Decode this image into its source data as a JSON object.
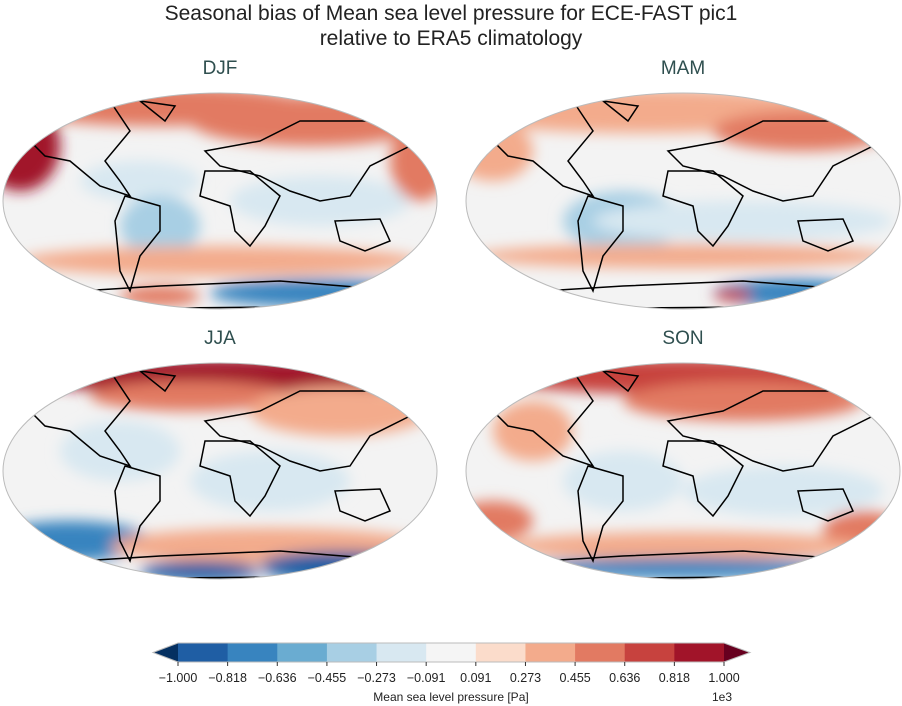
{
  "title": {
    "line1": "Seasonal bias of Mean sea level pressure for ECE-FAST pic1",
    "line2": "relative to ERA5 climatology"
  },
  "panels": [
    {
      "label": "DJF"
    },
    {
      "label": "MAM"
    },
    {
      "label": "JJA"
    },
    {
      "label": "SON"
    }
  ],
  "colorbar": {
    "label": "Mean sea level pressure [Pa]",
    "exponent": "1e3",
    "ticks": [
      "−1.000",
      "−0.818",
      "−0.636",
      "−0.455",
      "−0.273",
      "−0.091",
      "0.091",
      "0.273",
      "0.455",
      "0.636",
      "0.818",
      "1.000"
    ],
    "colors": [
      "#1f5ea4",
      "#3884bf",
      "#6aacd1",
      "#a8cfe4",
      "#d8e8f1",
      "#f5f5f5",
      "#fbdccb",
      "#f3ab8c",
      "#e27a62",
      "#c7423e",
      "#a11429"
    ],
    "under_color": "#053061",
    "over_color": "#67001f"
  }
}
